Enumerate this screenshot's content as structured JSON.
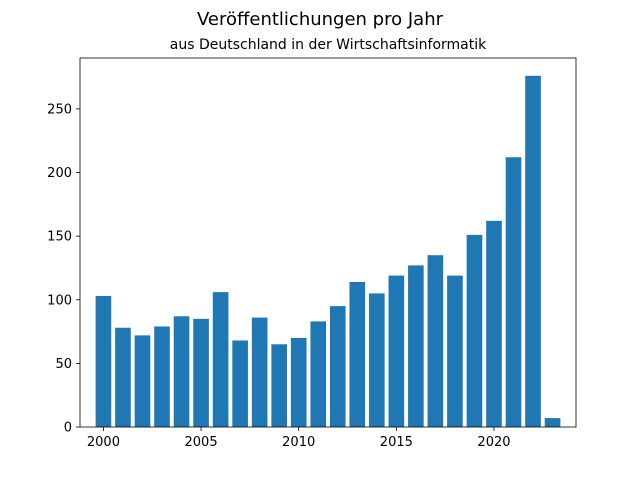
{
  "chart_data": {
    "type": "bar",
    "title": "Veröffentlichungen pro Jahr",
    "subtitle": "aus Deutschland in der Wirtschaftsinformatik",
    "xlabel": "",
    "ylabel": "",
    "categories": [
      2000,
      2001,
      2002,
      2003,
      2004,
      2005,
      2006,
      2007,
      2008,
      2009,
      2010,
      2011,
      2012,
      2013,
      2014,
      2015,
      2016,
      2017,
      2018,
      2019,
      2020,
      2021,
      2022,
      2023
    ],
    "values": [
      103,
      78,
      72,
      79,
      87,
      85,
      106,
      68,
      86,
      65,
      70,
      83,
      95,
      114,
      105,
      119,
      127,
      135,
      119,
      151,
      162,
      212,
      276,
      7
    ],
    "xlim": [
      1998.8,
      2024.2
    ],
    "ylim": [
      0,
      290
    ],
    "xticks": [
      2000,
      2005,
      2010,
      2015,
      2020
    ],
    "yticks": [
      0,
      50,
      100,
      150,
      200,
      250
    ],
    "color": "#1f77b4",
    "grid": false,
    "legend": "none"
  }
}
